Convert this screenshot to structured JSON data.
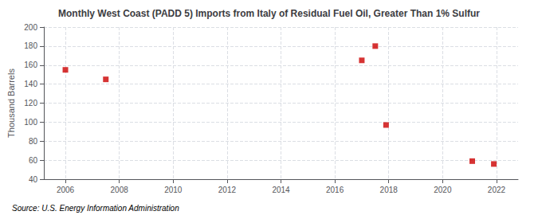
{
  "chart_data": {
    "type": "scatter",
    "title": "Monthly West Coast (PADD 5) Imports from Italy of Residual Fuel Oil, Greater Than 1% Sulfur",
    "ylabel": "Thousand Barrels",
    "source": "Source: U.S. Energy Information Administration",
    "x": [
      2006.0,
      2007.5,
      2017.0,
      2017.5,
      2017.9,
      2021.1,
      2021.9
    ],
    "values": [
      155,
      145,
      165,
      180,
      97,
      59,
      56
    ],
    "color": "#cc0000",
    "marker": "square",
    "xlim": [
      2005.2,
      2022.8
    ],
    "ylim": [
      40,
      200
    ],
    "xticks": [
      2006,
      2008,
      2010,
      2012,
      2014,
      2016,
      2018,
      2020,
      2022
    ],
    "yticks": [
      40,
      60,
      80,
      100,
      120,
      140,
      160,
      180,
      200
    ],
    "grid": true
  }
}
